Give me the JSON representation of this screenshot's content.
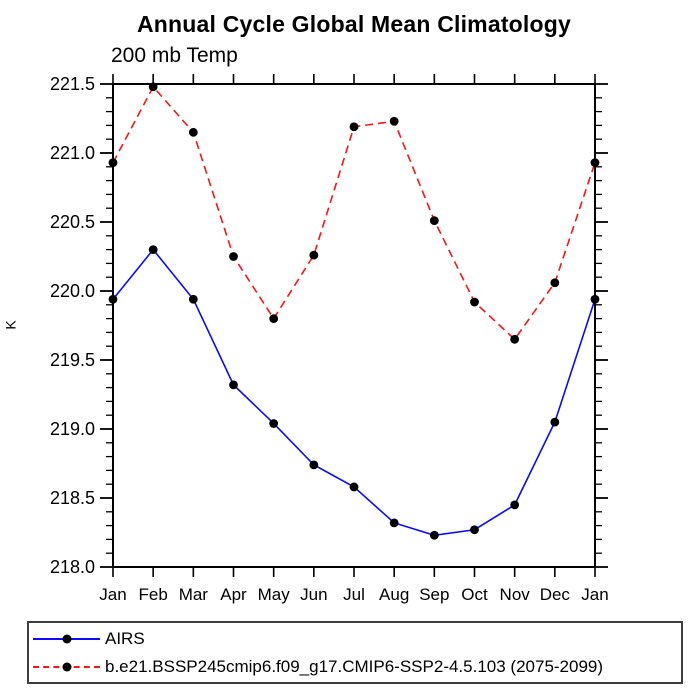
{
  "chart_data": {
    "type": "line",
    "title": "Annual Cycle Global Mean Climatology",
    "subtitle": "200 mb Temp",
    "xlabel": "",
    "ylabel": "K",
    "ylim": [
      218.0,
      221.5
    ],
    "ytick_step": 0.5,
    "yminor_step": 0.1,
    "grid": false,
    "legend_position": "bottom-left-box",
    "categories": [
      "Jan",
      "Feb",
      "Mar",
      "Apr",
      "May",
      "Jun",
      "Jul",
      "Aug",
      "Sep",
      "Oct",
      "Nov",
      "Dec",
      "Jan"
    ],
    "y_tick_labels": [
      "218.0",
      "218.5",
      "219.0",
      "219.5",
      "220.0",
      "220.5",
      "221.0",
      "221.5"
    ],
    "series": [
      {
        "name": "AIRS",
        "line_style": "solid",
        "color": "#0a0aff",
        "marker": "circle",
        "marker_color": "#000000",
        "values": [
          219.94,
          220.3,
          219.94,
          219.32,
          219.04,
          218.74,
          218.58,
          218.32,
          218.23,
          218.27,
          218.45,
          219.05,
          219.94
        ]
      },
      {
        "name": "b.e21.BSSP245cmip6.f09_g17.CMIP6-SSP2-4.5.103 (2075-2099)",
        "line_style": "dashed",
        "color": "#fb1414",
        "marker": "circle",
        "marker_color": "#000000",
        "values": [
          220.93,
          221.48,
          221.15,
          220.25,
          219.8,
          220.26,
          221.19,
          221.23,
          220.51,
          219.92,
          219.65,
          220.06,
          220.93
        ]
      }
    ],
    "colors": {
      "axis": "#000000",
      "legend_border": "#3d3d3d",
      "background": "#ffffff"
    }
  }
}
